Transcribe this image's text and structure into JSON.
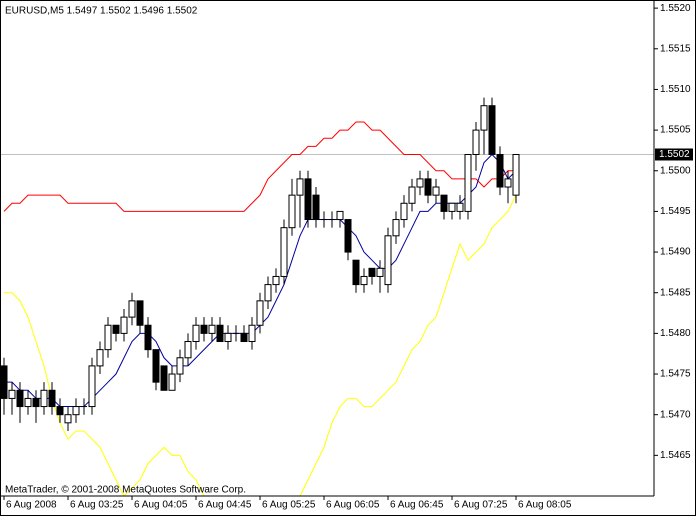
{
  "chart_data": {
    "type": "candlestick",
    "title": "EURUSD,M5  1.5497 1.5502 1.5496 1.5502",
    "footer": "MetaTrader, © 2001-2008 MetaQuotes Software Corp.",
    "categories": [
      "6 Aug 2008",
      null,
      null,
      null,
      null,
      null,
      null,
      null,
      "6 Aug 03:25",
      null,
      null,
      null,
      null,
      null,
      null,
      null,
      "6 Aug 04:05",
      null,
      null,
      null,
      null,
      null,
      null,
      null,
      "6 Aug 04:45",
      null,
      null,
      null,
      null,
      null,
      null,
      null,
      "6 Aug 05:25",
      null,
      null,
      null,
      null,
      null,
      null,
      null,
      "6 Aug 06:05",
      null,
      null,
      null,
      null,
      null,
      null,
      null,
      "6 Aug 06:45",
      null,
      null,
      null,
      null,
      null,
      null,
      null,
      "6 Aug 07:25",
      null,
      null,
      null,
      null,
      null,
      null,
      null,
      "6 Aug 08:05"
    ],
    "open": [
      1.5476,
      1.5472,
      1.5473,
      1.5471,
      1.5472,
      1.5471,
      1.5473,
      1.5471,
      1.5469,
      1.547,
      1.5471,
      1.5471,
      1.5476,
      1.5478,
      1.5481,
      1.548,
      1.5482,
      1.5484,
      1.5481,
      1.5478,
      1.5476,
      1.5473,
      1.5475,
      1.5477,
      1.5479,
      1.5481,
      1.548,
      1.5481,
      1.5479,
      1.548,
      1.548,
      1.5479,
      1.5481,
      1.5484,
      1.5486,
      1.5487,
      1.5493,
      1.5497,
      1.5499,
      1.5497,
      1.5494,
      1.5494,
      1.5494,
      1.5494,
      1.5489,
      1.5486,
      1.5488,
      1.5487,
      1.5486,
      1.5492,
      1.5494,
      1.5496,
      1.5498,
      1.5499,
      1.5497,
      1.5497,
      1.5495,
      1.5495,
      1.5495,
      1.5502,
      1.5505,
      1.5508,
      1.5502,
      1.5498,
      1.5497
    ],
    "high": [
      1.5477,
      1.5474,
      1.5474,
      1.5473,
      1.5473,
      1.5474,
      1.5474,
      1.5472,
      1.5471,
      1.5472,
      1.5472,
      1.5477,
      1.5479,
      1.5482,
      1.5481,
      1.5483,
      1.5485,
      1.5484,
      1.5482,
      1.5478,
      1.5476,
      1.5476,
      1.5478,
      1.548,
      1.5482,
      1.5482,
      1.5482,
      1.5482,
      1.5481,
      1.5481,
      1.5481,
      1.5482,
      1.5485,
      1.5487,
      1.5488,
      1.5494,
      1.5499,
      1.55,
      1.55,
      1.5498,
      1.5495,
      1.5495,
      1.5495,
      1.5494,
      1.5489,
      1.5488,
      1.5488,
      1.5489,
      1.5493,
      1.5495,
      1.5497,
      1.5499,
      1.55,
      1.55,
      1.5499,
      1.5497,
      1.5496,
      1.5497,
      1.5502,
      1.5506,
      1.5509,
      1.5509,
      1.5503,
      1.55,
      1.5502
    ],
    "low": [
      1.547,
      1.547,
      1.5469,
      1.547,
      1.5469,
      1.547,
      1.547,
      1.5469,
      1.5468,
      1.5469,
      1.547,
      1.547,
      1.5475,
      1.5477,
      1.5479,
      1.5479,
      1.5481,
      1.548,
      1.5477,
      1.5473,
      1.5473,
      1.5473,
      1.5474,
      1.5476,
      1.5478,
      1.5479,
      1.5479,
      1.5479,
      1.5478,
      1.5479,
      1.5479,
      1.5478,
      1.548,
      1.5483,
      1.5485,
      1.5486,
      1.5492,
      1.5493,
      1.5493,
      1.5493,
      1.5493,
      1.5493,
      1.5493,
      1.5489,
      1.5485,
      1.5485,
      1.5486,
      1.5485,
      1.5485,
      1.5491,
      1.5493,
      1.5495,
      1.5497,
      1.5496,
      1.5496,
      1.5494,
      1.5494,
      1.5494,
      1.5494,
      1.55,
      1.5502,
      1.5502,
      1.5497,
      1.5496,
      1.5496
    ],
    "close": [
      1.5472,
      1.5473,
      1.5471,
      1.5472,
      1.5471,
      1.5473,
      1.5471,
      1.547,
      1.547,
      1.5471,
      1.5471,
      1.5476,
      1.5478,
      1.5481,
      1.548,
      1.5482,
      1.5484,
      1.5481,
      1.5478,
      1.5474,
      1.5473,
      1.5475,
      1.5477,
      1.5479,
      1.5481,
      1.548,
      1.5481,
      1.5479,
      1.548,
      1.548,
      1.5479,
      1.5481,
      1.5484,
      1.5486,
      1.5487,
      1.5493,
      1.5497,
      1.5499,
      1.5494,
      1.5494,
      1.5494,
      1.5494,
      1.5495,
      1.549,
      1.5486,
      1.5487,
      1.5487,
      1.5488,
      1.5492,
      1.5494,
      1.5496,
      1.5498,
      1.5499,
      1.5497,
      1.5498,
      1.5495,
      1.5496,
      1.5496,
      1.5502,
      1.5505,
      1.5508,
      1.5502,
      1.5498,
      1.5499,
      1.5502
    ],
    "indicators": [
      {
        "color": "#ff0000",
        "values": [
          1.5495,
          1.5496,
          1.5496,
          1.5497,
          1.5497,
          1.5497,
          1.5497,
          1.5497,
          1.5496,
          1.5496,
          1.5496,
          1.5496,
          1.5496,
          1.5496,
          1.5496,
          1.5495,
          1.5495,
          1.5495,
          1.5495,
          1.5495,
          1.5495,
          1.5495,
          1.5495,
          1.5495,
          1.5495,
          1.5495,
          1.5495,
          1.5495,
          1.5495,
          1.5495,
          1.5495,
          1.5496,
          1.5497,
          1.5499,
          1.55,
          1.5501,
          1.5502,
          1.5502,
          1.5503,
          1.5503,
          1.5504,
          1.5504,
          1.5505,
          1.5505,
          1.5506,
          1.5506,
          1.5505,
          1.5505,
          1.5504,
          1.5503,
          1.5502,
          1.5502,
          1.5502,
          1.5501,
          1.55,
          1.55,
          1.5499,
          1.5499,
          1.5499,
          1.5499,
          1.5498,
          1.5499,
          1.5499,
          1.55,
          1.55
        ]
      },
      {
        "color": "#ffff00",
        "values": [
          1.5485,
          1.5485,
          1.5484,
          1.5482,
          1.5479,
          1.5476,
          1.5472,
          1.5469,
          1.5467,
          1.5468,
          1.5468,
          1.5467,
          1.5466,
          1.5464,
          1.5462,
          1.546,
          1.5461,
          1.5462,
          1.5464,
          1.5465,
          1.5466,
          1.5465,
          1.5465,
          1.5463,
          1.5462,
          1.546,
          1.5459,
          1.5458,
          1.5457,
          1.5457,
          1.5457,
          1.5457,
          1.5457,
          1.5457,
          1.5457,
          1.5458,
          1.5459,
          1.546,
          1.5462,
          1.5464,
          1.5466,
          1.5469,
          1.5471,
          1.5472,
          1.5472,
          1.5471,
          1.5471,
          1.5472,
          1.5473,
          1.5474,
          1.5476,
          1.5478,
          1.5479,
          1.5481,
          1.5482,
          1.5485,
          1.5488,
          1.5491,
          1.5489,
          1.549,
          1.5491,
          1.5493,
          1.5494,
          1.5495,
          1.5497
        ]
      },
      {
        "color": "#0000a0",
        "values": [
          1.5474,
          1.5474,
          1.5473,
          1.5473,
          1.5472,
          1.5472,
          1.5472,
          1.5471,
          1.5471,
          1.5471,
          1.5471,
          1.5472,
          1.5473,
          1.5474,
          1.5475,
          1.5477,
          1.5479,
          1.548,
          1.548,
          1.5479,
          1.5477,
          1.5476,
          1.5476,
          1.5476,
          1.5477,
          1.5478,
          1.5479,
          1.548,
          1.548,
          1.548,
          1.548,
          1.548,
          1.5481,
          1.5482,
          1.5484,
          1.5486,
          1.5489,
          1.5492,
          1.5494,
          1.5494,
          1.5494,
          1.5494,
          1.5494,
          1.5493,
          1.5492,
          1.549,
          1.5489,
          1.5488,
          1.5488,
          1.5489,
          1.5491,
          1.5493,
          1.5495,
          1.5495,
          1.5496,
          1.5496,
          1.5496,
          1.5496,
          1.5497,
          1.5498,
          1.5501,
          1.5502,
          1.5501,
          1.5499,
          1.55
        ]
      }
    ],
    "current_price": 1.5502,
    "ylim": [
      1.546,
      1.5521
    ],
    "yticks": [
      1.5465,
      {
        "value": 1.547,
        "label": "1.5470"
      },
      1.5475,
      {
        "value": 1.548,
        "label": "1.5480"
      },
      1.5485,
      {
        "value": 1.549,
        "label": "1.5490"
      },
      1.5495,
      {
        "value": 1.55,
        "label": "1.5500"
      },
      1.5505,
      {
        "value": 1.551,
        "label": "1.5510"
      },
      1.5515,
      {
        "value": 1.552,
        "label": "1.5520"
      }
    ]
  }
}
